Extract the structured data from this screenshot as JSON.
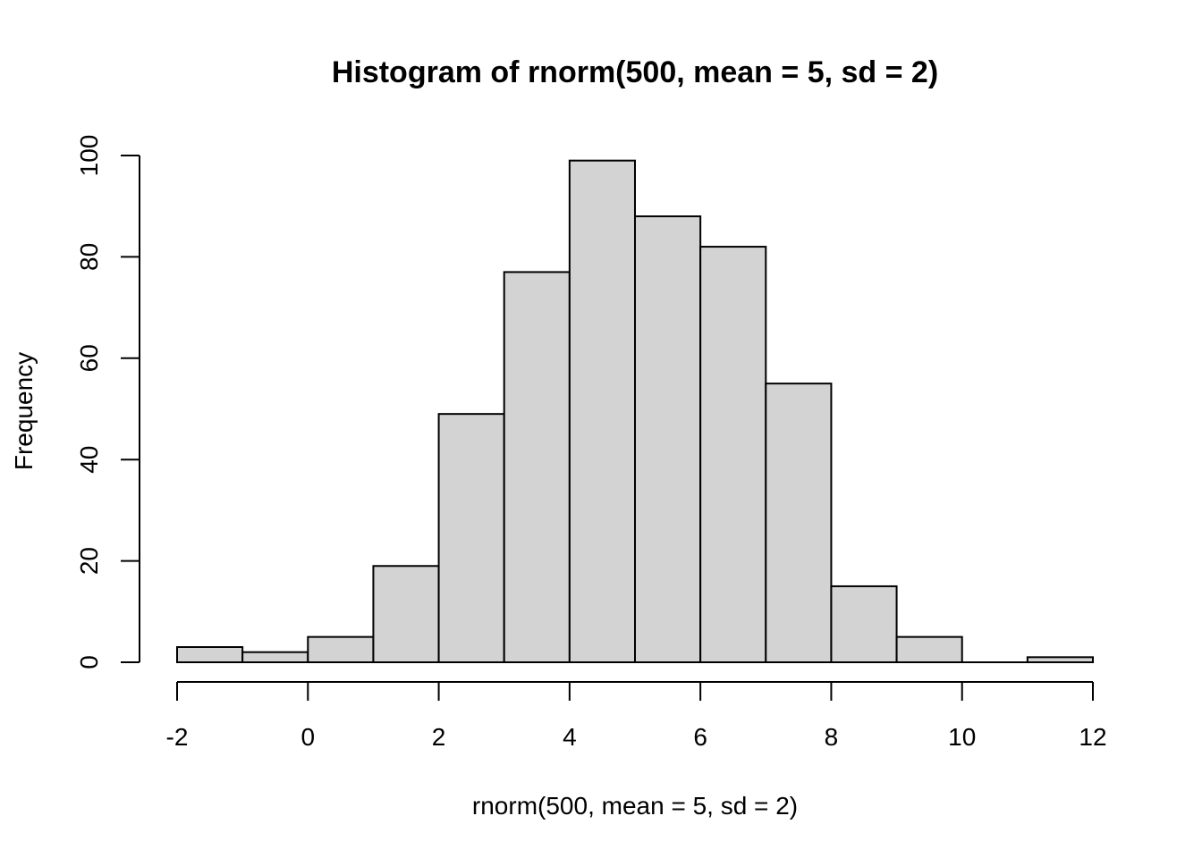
{
  "chart_data": {
    "type": "bar",
    "title": "Histogram of rnorm(500, mean = 5, sd = 2)",
    "xlabel": "rnorm(500, mean = 5, sd = 2)",
    "ylabel": "Frequency",
    "bins": [
      {
        "from": -2,
        "to": -1,
        "count": 3
      },
      {
        "from": -1,
        "to": 0,
        "count": 2
      },
      {
        "from": 0,
        "to": 1,
        "count": 5
      },
      {
        "from": 1,
        "to": 2,
        "count": 19
      },
      {
        "from": 2,
        "to": 3,
        "count": 49
      },
      {
        "from": 3,
        "to": 4,
        "count": 77
      },
      {
        "from": 4,
        "to": 5,
        "count": 99
      },
      {
        "from": 5,
        "to": 6,
        "count": 88
      },
      {
        "from": 6,
        "to": 7,
        "count": 82
      },
      {
        "from": 7,
        "to": 8,
        "count": 55
      },
      {
        "from": 8,
        "to": 9,
        "count": 15
      },
      {
        "from": 9,
        "to": 10,
        "count": 5
      },
      {
        "from": 10,
        "to": 11,
        "count": 0
      },
      {
        "from": 11,
        "to": 12,
        "count": 1
      }
    ],
    "xlim": [
      -2,
      12
    ],
    "ylim": [
      0,
      100
    ],
    "x_ticks": [
      -2,
      0,
      2,
      4,
      6,
      8,
      10,
      12
    ],
    "y_ticks": [
      0,
      20,
      40,
      60,
      80,
      100
    ],
    "bar_color": "#d3d3d3",
    "border_color": "#000000",
    "grid": false
  }
}
